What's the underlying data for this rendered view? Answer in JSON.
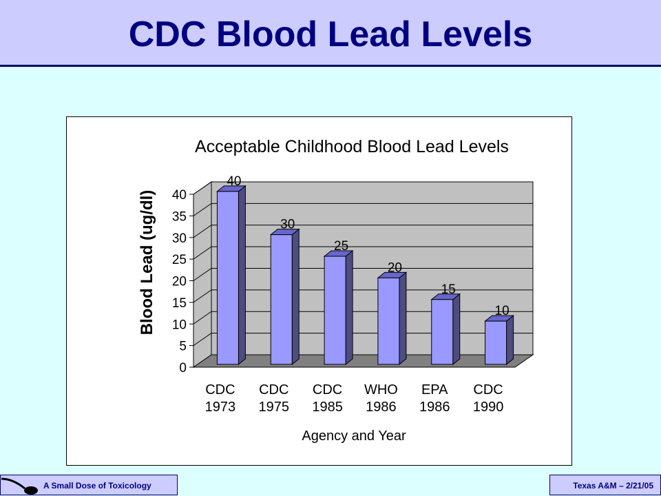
{
  "slide": {
    "title": "CDC Blood Lead Levels"
  },
  "footer": {
    "left_text": "A Small Dose of Toxicology",
    "right_text": "Texas A&M – 2/21/05",
    "logo_icon": "spoon-icon"
  },
  "colors": {
    "header_bg": "#ccccff",
    "slide_bg": "#dcffff",
    "title_color": "#000080",
    "bar_front": "#9999ff",
    "bar_side": "#4d4d80",
    "bar_top": "#6666cc",
    "plot_wall": "#c0c0c0",
    "plot_floor": "#808080"
  },
  "chart_data": {
    "type": "bar",
    "title": "Acceptable Childhood Blood Lead Levels",
    "xlabel": "Agency and Year",
    "ylabel": "Blood Lead (ug/dl)",
    "categories": [
      {
        "agency": "CDC",
        "year": "1973"
      },
      {
        "agency": "CDC",
        "year": "1975"
      },
      {
        "agency": "CDC",
        "year": "1985"
      },
      {
        "agency": "WHO",
        "year": "1986"
      },
      {
        "agency": "EPA",
        "year": "1986"
      },
      {
        "agency": "CDC",
        "year": "1990"
      }
    ],
    "values": [
      40,
      30,
      25,
      20,
      15,
      10
    ],
    "data_labels": [
      "40",
      "30",
      "25",
      "20",
      "15",
      "10"
    ],
    "ylim": [
      0,
      40
    ],
    "yticks": [
      "0",
      "5",
      "10",
      "15",
      "20",
      "25",
      "30",
      "35",
      "40"
    ],
    "grid": true,
    "style": "3d-column",
    "legend": "none"
  }
}
